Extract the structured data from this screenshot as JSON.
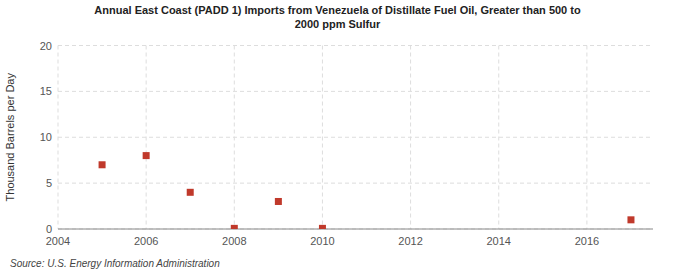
{
  "chart_data": {
    "type": "scatter",
    "title": "Annual East Coast (PADD 1) Imports from Venezuela of Distillate Fuel Oil, Greater than 500 to\n2000 ppm Sulfur",
    "ylabel": "Thousand Barrels per Day",
    "source": "Source: U.S. Energy Information Administration",
    "x": [
      2005,
      2006,
      2007,
      2008,
      2009,
      2010,
      2017
    ],
    "values": [
      7.0,
      8.0,
      4.0,
      0.07,
      3.0,
      0.07,
      1.0
    ],
    "color": "#c0392b",
    "marker": "square",
    "xlim": [
      2004,
      2017.5
    ],
    "ylim": [
      0,
      20
    ],
    "xticks": [
      2004,
      2006,
      2008,
      2010,
      2012,
      2014,
      2016
    ],
    "yticks": [
      0,
      5,
      10,
      15,
      20
    ],
    "grid": true
  }
}
